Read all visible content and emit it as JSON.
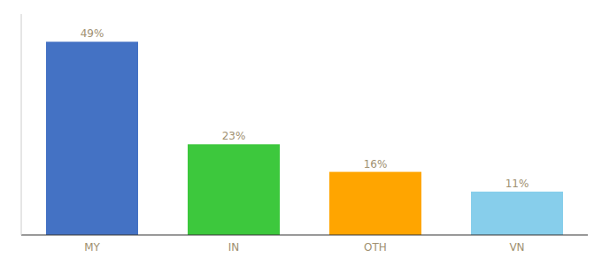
{
  "chart_data": {
    "type": "bar",
    "categories": [
      "MY",
      "IN",
      "OTH",
      "VN"
    ],
    "values": [
      49,
      23,
      16,
      11
    ],
    "value_labels": [
      "49%",
      "23%",
      "16%",
      "11%"
    ],
    "colors": [
      "#4472C4",
      "#3DC83D",
      "#FFA500",
      "#87CEEB"
    ],
    "ylim": [
      0,
      56
    ],
    "data_labels": true,
    "tick_labels": "x",
    "grid": false
  }
}
